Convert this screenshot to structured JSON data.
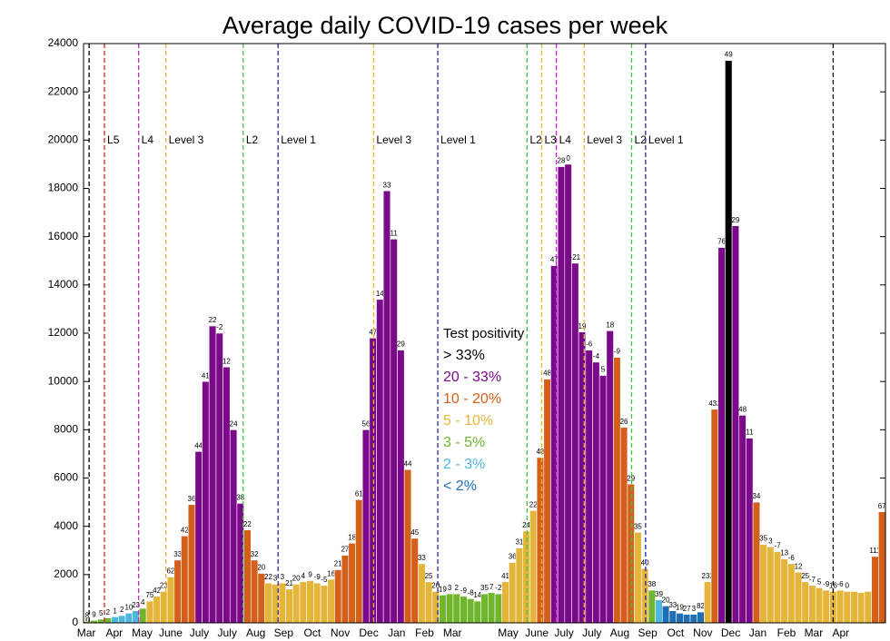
{
  "chart_data": {
    "type": "bar",
    "title": "Average daily COVID-19 cases per week",
    "categories": [
      null,
      null,
      null,
      null,
      null,
      null,
      null,
      null,
      null,
      null,
      null,
      null,
      null,
      null,
      null,
      null,
      null,
      null,
      null,
      null,
      null,
      null,
      null,
      null,
      null,
      null,
      null,
      null,
      null,
      null,
      null,
      null,
      null,
      null,
      null,
      null,
      null,
      null,
      null,
      null,
      null,
      null,
      null,
      null,
      null,
      null,
      null,
      null,
      null,
      null,
      null,
      null,
      null,
      null,
      null,
      null,
      null,
      null,
      null,
      null,
      null,
      null,
      null,
      null,
      null,
      null,
      null,
      null,
      null,
      null,
      null,
      null,
      null,
      null,
      null,
      null,
      null,
      null,
      null,
      null,
      null,
      null,
      null,
      null,
      null,
      null,
      null,
      null,
      null,
      null,
      null,
      null,
      null,
      null,
      null,
      null,
      null,
      null,
      null,
      null,
      null,
      null,
      null,
      null,
      null,
      null,
      null,
      null,
      null,
      null,
      null,
      null,
      null,
      null,
      null
    ],
    "values": [
      60,
      100,
      150,
      200,
      250,
      300,
      400,
      500,
      600,
      900,
      1100,
      1300,
      1900,
      2600,
      3600,
      4900,
      7100,
      10000,
      12300,
      12000,
      10600,
      8000,
      4950,
      3850,
      2600,
      2050,
      1650,
      1600,
      1650,
      1400,
      1600,
      1700,
      1750,
      1650,
      1550,
      1800,
      2200,
      2800,
      3300,
      5100,
      8000,
      11800,
      13400,
      17900,
      15900,
      11300,
      6350,
      3500,
      2450,
      1700,
      1300,
      1150,
      1200,
      1200,
      1100,
      1000,
      900,
      1200,
      1250,
      1200,
      1700,
      2500,
      3100,
      3800,
      4650,
      6850,
      10100,
      14800,
      18900,
      19000,
      14900,
      12050,
      11300,
      10800,
      10250,
      12100,
      11000,
      8100,
      5750,
      3750,
      2250,
      1350,
      950,
      700,
      500,
      400,
      350,
      350,
      450,
      1700,
      8850,
      15550,
      23300,
      16450,
      8600,
      7650,
      5000,
      3250,
      3150,
      2950,
      2650,
      2450,
      2100,
      1700,
      1550,
      1450,
      1350,
      1300,
      1350,
      1300,
      1300,
      1250,
      1300,
      2750,
      4600
    ],
    "value_labels": [
      "8",
      "9",
      "5",
      "2",
      "1",
      "2",
      "10",
      "23",
      "4",
      "75",
      "42",
      "23",
      "62",
      "33",
      "42",
      "36",
      "44",
      "41",
      "22",
      "-2",
      "12",
      "24",
      "38",
      "22",
      "32",
      "20",
      "22",
      "3",
      "3",
      "21",
      "20",
      "4",
      "9",
      "-9",
      "-5",
      "16",
      "21",
      "27",
      "18",
      "61",
      "56",
      "47",
      "14",
      "33",
      "11",
      "29",
      "44",
      "45",
      "33",
      "25",
      "20",
      "19",
      "3",
      "2",
      "-9",
      "-8",
      "14",
      "35",
      "7",
      "-2",
      "41",
      "36",
      "31",
      "24",
      "22",
      "48",
      "48",
      "47",
      "28",
      "0",
      "-21",
      "19",
      "-6",
      "-4",
      "5",
      "18",
      "-9",
      "26",
      "29",
      "35",
      "40",
      "38",
      "39",
      "20",
      "33",
      "19",
      "27",
      "3",
      "82",
      "233",
      "432",
      "76",
      "49",
      "29",
      "48",
      "11",
      "34",
      "35",
      "3",
      "-7",
      "13",
      "-6",
      "12",
      "25",
      "-7",
      "5",
      "-9",
      "16",
      "-6",
      "0",
      null,
      null,
      null,
      "111",
      "67"
    ],
    "colors": [
      "#6fb52e",
      "#6fb52e",
      "#6fb52e",
      "#6fb52e",
      "#4fb6e0",
      "#4fb6e0",
      "#4fb6e0",
      "#4fb6e0",
      "#6fb52e",
      "#e5b53a",
      "#e5b53a",
      "#e5b53a",
      "#e5b53a",
      "#d35f1a",
      "#d35f1a",
      "#d35f1a",
      "#7b0a8a",
      "#7b0a8a",
      "#7b0a8a",
      "#7b0a8a",
      "#7b0a8a",
      "#7b0a8a",
      "#7b0a8a",
      "#d35f1a",
      "#d35f1a",
      "#d35f1a",
      "#e5b53a",
      "#e5b53a",
      "#e5b53a",
      "#e5b53a",
      "#e5b53a",
      "#e5b53a",
      "#e5b53a",
      "#e5b53a",
      "#e5b53a",
      "#e5b53a",
      "#d35f1a",
      "#d35f1a",
      "#d35f1a",
      "#d35f1a",
      "#7b0a8a",
      "#7b0a8a",
      "#7b0a8a",
      "#7b0a8a",
      "#7b0a8a",
      "#7b0a8a",
      "#d35f1a",
      "#d35f1a",
      "#e5b53a",
      "#e5b53a",
      "#e5b53a",
      "#6fb52e",
      "#6fb52e",
      "#6fb52e",
      "#6fb52e",
      "#6fb52e",
      "#6fb52e",
      "#6fb52e",
      "#6fb52e",
      "#6fb52e",
      "#e5b53a",
      "#e5b53a",
      "#e5b53a",
      "#e5b53a",
      "#e5b53a",
      "#d35f1a",
      "#d35f1a",
      "#7b0a8a",
      "#7b0a8a",
      "#7b0a8a",
      "#7b0a8a",
      "#7b0a8a",
      "#7b0a8a",
      "#7b0a8a",
      "#7b0a8a",
      "#7b0a8a",
      "#d35f1a",
      "#d35f1a",
      "#d35f1a",
      "#e5b53a",
      "#e5b53a",
      "#6fb52e",
      "#4fb6e0",
      "#1f6fb5",
      "#1f6fb5",
      "#1f6fb5",
      "#1f6fb5",
      "#1f6fb5",
      "#1f6fb5",
      "#e5b53a",
      "#d35f1a",
      "#7b0a8a",
      "#000000",
      "#7b0a8a",
      "#7b0a8a",
      "#7b0a8a",
      "#d35f1a",
      "#e5b53a",
      "#e5b53a",
      "#e5b53a",
      "#e5b53a",
      "#e5b53a",
      "#e5b53a",
      "#e5b53a",
      "#e5b53a",
      "#e5b53a",
      "#e5b53a",
      "#e5b53a",
      "#e5b53a",
      "#e5b53a",
      "#e5b53a",
      "#e5b53a",
      "#e5b53a",
      "#d35f1a",
      "#d35f1a"
    ],
    "xlim": [
      0,
      115
    ],
    "xticks": [
      {
        "value": 0.4,
        "label": "Mar"
      },
      {
        "value": 4.4,
        "label": "Apr"
      },
      {
        "value": 8.4,
        "label": "May"
      },
      {
        "value": 12.5,
        "label": "June"
      },
      {
        "value": 16.6,
        "label": "July"
      },
      {
        "value": 20.6,
        "label": "July"
      },
      {
        "value": 24.7,
        "label": "Aug"
      },
      {
        "value": 28.7,
        "label": "Sep"
      },
      {
        "value": 32.8,
        "label": "Oct"
      },
      {
        "value": 36.8,
        "label": "Nov"
      },
      {
        "value": 40.9,
        "label": "Dec"
      },
      {
        "value": 44.9,
        "label": "Jan"
      },
      {
        "value": 48.9,
        "label": "Feb"
      },
      {
        "value": 52.9,
        "label": "Mar"
      },
      {
        "value": 60.9,
        "label": "May"
      },
      {
        "value": 65.0,
        "label": "June"
      },
      {
        "value": 68.9,
        "label": "July"
      },
      {
        "value": 72.9,
        "label": "July"
      },
      {
        "value": 76.9,
        "label": "Aug"
      },
      {
        "value": 80.9,
        "label": "Sep"
      },
      {
        "value": 84.9,
        "label": "Oct"
      },
      {
        "value": 88.8,
        "label": "Nov"
      },
      {
        "value": 92.8,
        "label": "Dec"
      },
      {
        "value": 96.7,
        "label": "Jan"
      },
      {
        "value": 100.8,
        "label": "Feb"
      },
      {
        "value": 104.7,
        "label": "Mar"
      },
      {
        "value": 108.6,
        "label": "Apr"
      }
    ],
    "ylim": [
      0,
      24000
    ],
    "yticks": [
      0,
      2000,
      4000,
      6000,
      8000,
      10000,
      12000,
      14000,
      16000,
      18000,
      20000,
      22000,
      24000
    ],
    "annotations": [
      {
        "x": 0.8,
        "label": null,
        "color": "#000000"
      },
      {
        "x": 3.0,
        "label": "L5",
        "color": "#d0202a"
      },
      {
        "x": 7.9,
        "label": "L4",
        "color": "#d020d0"
      },
      {
        "x": 11.8,
        "label": "Level 3",
        "color": "#e5b53a"
      },
      {
        "x": 22.9,
        "label": "L2",
        "color": "#3ac83a"
      },
      {
        "x": 27.9,
        "label": "Level 1",
        "color": "#2a2a9a"
      },
      {
        "x": 41.6,
        "label": "Level 3",
        "color": "#e5b53a"
      },
      {
        "x": 50.8,
        "label": "Level 1",
        "color": "#2a2a9a"
      },
      {
        "x": 63.6,
        "label": "L2",
        "color": "#3ac83a"
      },
      {
        "x": 65.7,
        "label": "L3",
        "color": "#e5b53a"
      },
      {
        "x": 67.8,
        "label": "L4",
        "color": "#d020d0"
      },
      {
        "x": 71.8,
        "label": "Level 3",
        "color": "#e5b53a"
      },
      {
        "x": 78.6,
        "label": "L2",
        "color": "#3ac83a"
      },
      {
        "x": 80.6,
        "label": "Level 1",
        "color": "#2a2a9a"
      },
      {
        "x": 107.5,
        "label": null,
        "color": "#000000"
      }
    ],
    "legend": {
      "title": "Test positivity",
      "items": [
        {
          "name": "> 33%",
          "color": "#000000"
        },
        {
          "name": "20 - 33%",
          "color": "#7b0a8a"
        },
        {
          "name": "10 - 20%",
          "color": "#d35f1a"
        },
        {
          "name": "5 - 10%",
          "color": "#e5b53a"
        },
        {
          "name": "3  - 5%",
          "color": "#6fb52e"
        },
        {
          "name": "2  - 3%",
          "color": "#4fb6e0"
        },
        {
          "name": "< 2%",
          "color": "#1f6fb5"
        }
      ]
    }
  }
}
